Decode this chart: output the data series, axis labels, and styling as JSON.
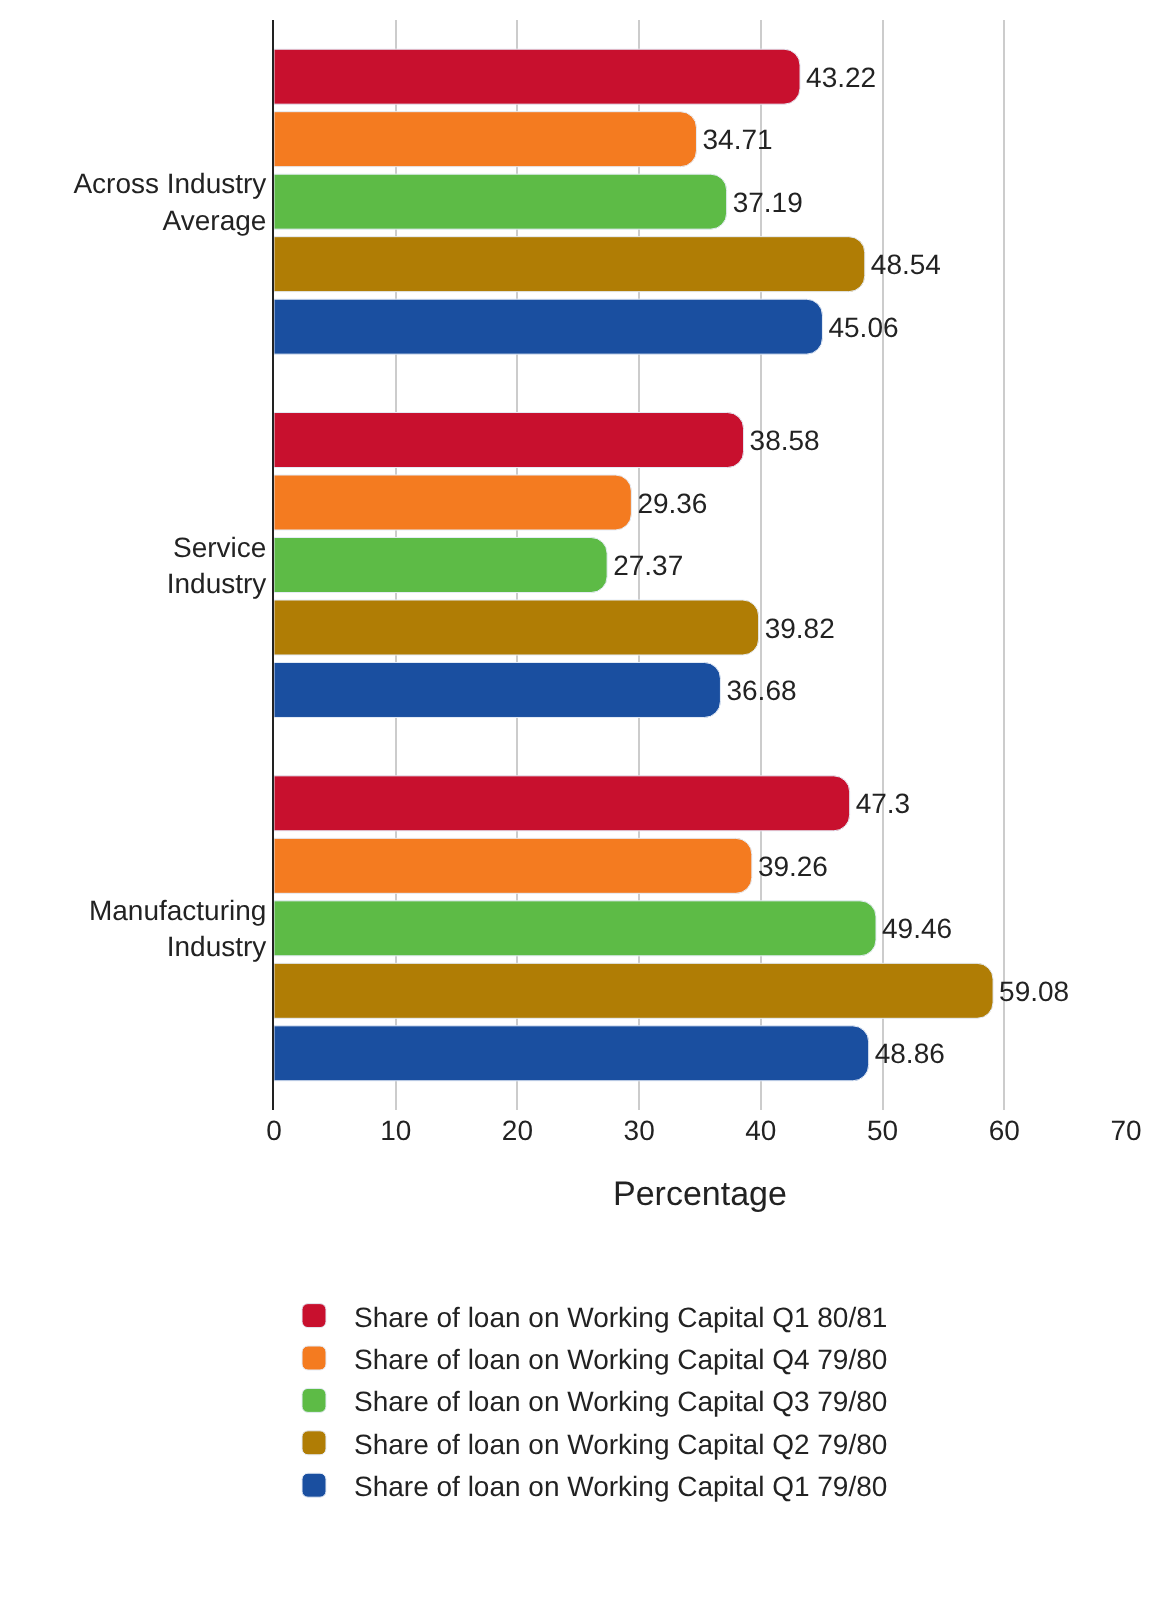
{
  "chart_data": {
    "type": "bar",
    "orientation": "horizontal",
    "xlabel": "Percentage",
    "categories": [
      "Across Industry Average",
      "Service Industry",
      "Manufacturing Industry"
    ],
    "series": [
      {
        "name": "Share of loan on Working Capital Q1 80/81",
        "color": "#c8102e",
        "values": [
          43.22,
          38.58,
          47.3
        ]
      },
      {
        "name": "Share of loan on Working Capital Q4 79/80",
        "color": "#f47b20",
        "values": [
          34.71,
          29.36,
          39.26
        ]
      },
      {
        "name": "Share of loan on Working Capital Q3 79/80",
        "color": "#5dbb46",
        "values": [
          37.19,
          27.37,
          49.46
        ]
      },
      {
        "name": "Share of loan on Working Capital Q2 79/80",
        "color": "#b07d05",
        "values": [
          48.54,
          39.82,
          59.08
        ]
      },
      {
        "name": "Share of loan on Working Capital Q1 79/80",
        "color": "#1a4fa0",
        "values": [
          45.06,
          36.68,
          48.86
        ]
      }
    ],
    "xlim": [
      0,
      70
    ],
    "xticks": [
      0,
      10,
      20,
      30,
      40,
      50,
      60,
      70
    ],
    "grid": "x",
    "legend": "bottom",
    "data_labels": true
  }
}
